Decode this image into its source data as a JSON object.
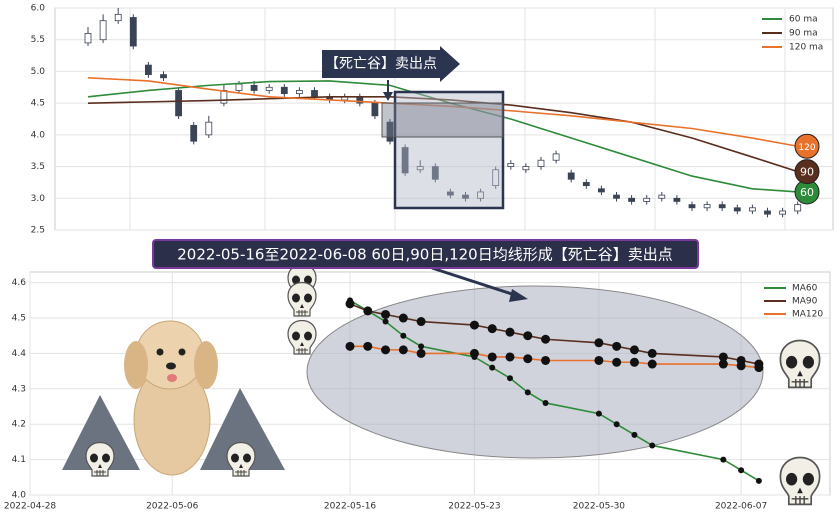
{
  "chart_data": [
    {
      "type": "candlestick",
      "annotation": "【死亡谷】卖出点",
      "ylim": [
        2.5,
        6.0
      ],
      "yticks": [
        2.5,
        {
          "value": 3,
          "label": "3.0"
        },
        3.5,
        {
          "value": 4,
          "label": "4.0"
        },
        4.5,
        {
          "value": 5,
          "label": "5.0"
        },
        5.5,
        {
          "value": 6,
          "label": "6.0"
        }
      ],
      "grid": true,
      "legend": "upper right",
      "candles": {
        "up_color": "#ffffff",
        "down_color": "#3a4455",
        "edge_color": "#3a4455",
        "open": [
          5.45,
          5.5,
          5.8,
          5.85,
          5.1,
          4.95,
          4.7,
          4.15,
          4.0,
          4.5,
          4.7,
          4.78,
          4.7,
          4.75,
          4.65,
          4.7,
          4.6,
          4.55,
          4.6,
          4.5,
          4.2,
          3.8,
          3.45,
          3.5,
          3.1,
          3.05,
          3.0,
          3.2,
          3.5,
          3.45,
          3.5,
          3.6,
          3.4,
          3.25,
          3.15,
          3.05,
          3.0,
          2.95,
          3.0,
          3.0,
          2.9,
          2.85,
          2.9,
          2.85,
          2.8,
          2.8,
          2.75,
          2.8
        ],
        "high": [
          5.7,
          5.9,
          6.0,
          5.9,
          5.15,
          5.0,
          4.75,
          4.2,
          4.3,
          4.8,
          4.85,
          4.85,
          4.8,
          4.8,
          4.75,
          4.75,
          4.65,
          4.65,
          4.65,
          4.55,
          4.25,
          3.85,
          3.6,
          3.55,
          3.15,
          3.1,
          3.15,
          3.5,
          3.6,
          3.55,
          3.65,
          3.75,
          3.45,
          3.3,
          3.2,
          3.1,
          3.05,
          3.05,
          3.1,
          3.05,
          2.95,
          2.95,
          2.95,
          2.9,
          2.9,
          2.85,
          2.85,
          2.95
        ],
        "low": [
          5.4,
          5.45,
          5.75,
          5.35,
          4.9,
          4.85,
          4.25,
          3.85,
          3.95,
          4.45,
          4.65,
          4.65,
          4.65,
          4.6,
          4.6,
          4.55,
          4.5,
          4.5,
          4.45,
          4.25,
          3.85,
          3.35,
          3.4,
          3.25,
          3.0,
          2.95,
          2.95,
          3.15,
          3.45,
          3.4,
          3.45,
          3.55,
          3.25,
          3.15,
          3.05,
          2.95,
          2.9,
          2.9,
          2.95,
          2.9,
          2.8,
          2.8,
          2.8,
          2.75,
          2.75,
          2.7,
          2.7,
          2.75
        ],
        "close": [
          5.6,
          5.8,
          5.9,
          5.4,
          4.95,
          4.9,
          4.3,
          3.9,
          4.2,
          4.7,
          4.8,
          4.7,
          4.75,
          4.65,
          4.7,
          4.6,
          4.55,
          4.6,
          4.5,
          4.3,
          3.9,
          3.4,
          3.5,
          3.3,
          3.05,
          3.0,
          3.1,
          3.45,
          3.55,
          3.5,
          3.6,
          3.7,
          3.3,
          3.2,
          3.1,
          3.0,
          2.95,
          3.0,
          3.05,
          2.95,
          2.85,
          2.9,
          2.85,
          2.8,
          2.85,
          2.75,
          2.8,
          2.9
        ]
      },
      "series": [
        {
          "name": "60 ma",
          "color": "#2e8b3a",
          "badge": "60",
          "x": [
            0,
            4,
            8,
            12,
            16,
            20,
            24,
            28,
            32,
            36,
            40,
            44,
            47
          ],
          "values": [
            4.6,
            4.7,
            4.78,
            4.84,
            4.85,
            4.78,
            4.5,
            4.25,
            3.95,
            3.65,
            3.35,
            3.15,
            3.1
          ]
        },
        {
          "name": "90 ma",
          "color": "#5a2e1e",
          "badge": "90",
          "x": [
            0,
            4,
            8,
            12,
            16,
            20,
            24,
            28,
            32,
            36,
            40,
            44,
            47
          ],
          "values": [
            4.5,
            4.52,
            4.54,
            4.57,
            4.6,
            4.6,
            4.55,
            4.47,
            4.35,
            4.2,
            3.95,
            3.65,
            3.42
          ]
        },
        {
          "name": "120 ma",
          "color": "#e8712c",
          "badge": "120",
          "x": [
            0,
            4,
            8,
            12,
            16,
            20,
            24,
            28,
            32,
            36,
            40,
            44,
            47
          ],
          "values": [
            4.9,
            4.85,
            4.72,
            4.6,
            4.55,
            4.5,
            4.45,
            4.38,
            4.3,
            4.2,
            4.1,
            3.95,
            3.82
          ]
        }
      ]
    },
    {
      "type": "line",
      "title": "2022-05-16至2022-06-08 60日,90日,120日均线形成【死亡谷】卖出点",
      "xlim": [
        "2022-04-28",
        "2022-06-12"
      ],
      "xticks": [
        "2022-04-28",
        "2022-05-06",
        "2022-05-16",
        "2022-05-23",
        "2022-05-30",
        "2022-06-07"
      ],
      "ylim": [
        4.0,
        4.63
      ],
      "yticks": [
        {
          "value": 4,
          "label": "4.0"
        },
        4.1,
        4.2,
        4.3,
        4.4,
        4.5,
        4.6
      ],
      "grid": true,
      "legend": "upper right",
      "x": [
        "2022-05-16",
        "2022-05-17",
        "2022-05-18",
        "2022-05-19",
        "2022-05-20",
        "2022-05-23",
        "2022-05-24",
        "2022-05-25",
        "2022-05-26",
        "2022-05-27",
        "2022-05-30",
        "2022-05-31",
        "2022-06-01",
        "2022-06-02",
        "2022-06-06",
        "2022-06-07",
        "2022-06-08"
      ],
      "series": [
        {
          "name": "MA60",
          "color": "#2e8b3a",
          "values": [
            4.55,
            4.52,
            4.49,
            4.45,
            4.42,
            4.39,
            4.36,
            4.33,
            4.29,
            4.26,
            4.23,
            4.2,
            4.17,
            4.14,
            4.1,
            4.07,
            4.04
          ]
        },
        {
          "name": "MA90",
          "color": "#5a2e1e",
          "values": [
            4.54,
            4.52,
            4.51,
            4.5,
            4.49,
            4.48,
            4.47,
            4.46,
            4.45,
            4.44,
            4.43,
            4.42,
            4.41,
            4.4,
            4.39,
            4.38,
            4.37
          ]
        },
        {
          "name": "MA120",
          "color": "#e8712c",
          "values": [
            4.42,
            4.42,
            4.41,
            4.41,
            4.4,
            4.4,
            4.39,
            4.39,
            4.385,
            4.38,
            4.38,
            4.375,
            4.375,
            4.37,
            4.37,
            4.365,
            4.36
          ]
        }
      ]
    }
  ]
}
